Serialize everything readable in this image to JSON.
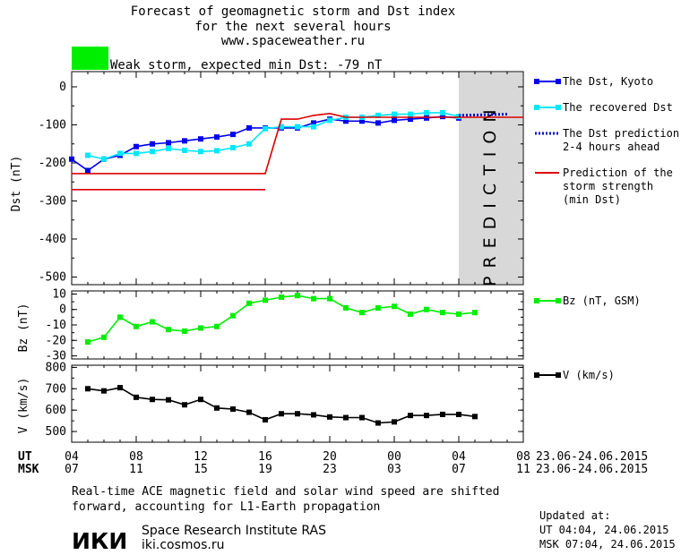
{
  "header": {
    "title_lines": [
      "Forecast of geomagnetic storm and Dst index",
      "for the next several hours",
      "www.spaceweather.ru"
    ],
    "storm_label": "Weak storm, expected min Dst: -79 nT",
    "storm_color": "#00ee00"
  },
  "prediction_label": "PREDICTION",
  "footer": {
    "note_lines": [
      "Real-time ACE magnetic field and solar wind speed are shifted",
      "forward, accounting for L1-Earth propagation"
    ],
    "logo_text": "ИКИ",
    "institute_name": "Space Research Institute RAS",
    "institute_url": "iki.cosmos.ru",
    "updated_label": "Updated at:",
    "updated_ut": "UT  04:04, 24.06.2015",
    "updated_msk": "MSK 07:04, 24.06.2015"
  },
  "chart_data": [
    {
      "type": "line",
      "ylabel": "Dst (nT)",
      "ylim": [
        -520,
        40
      ],
      "yticks": [
        0,
        -100,
        -200,
        -300,
        -400,
        -500
      ],
      "series": [
        {
          "name": "The Dst, Kyoto",
          "color": "#0000ee",
          "marker": "square",
          "x": [
            4,
            5,
            6,
            7,
            8,
            9,
            10,
            11,
            12,
            13,
            14,
            15,
            16,
            17,
            18,
            19,
            20,
            21,
            22,
            23,
            24,
            25,
            26,
            27,
            28
          ],
          "y": [
            -190,
            -220,
            -190,
            -180,
            -157,
            -150,
            -147,
            -142,
            -137,
            -132,
            -125,
            -108,
            -108,
            -108,
            -108,
            -95,
            -85,
            -90,
            -90,
            -95,
            -88,
            -85,
            -82,
            -78,
            -82
          ]
        },
        {
          "name": "The recovered Dst",
          "color": "#00e8ff",
          "marker": "square",
          "x": [
            5,
            6,
            7,
            8,
            9,
            10,
            11,
            12,
            13,
            14,
            15,
            16,
            17,
            18,
            19,
            20,
            21,
            22,
            23,
            24,
            25,
            26,
            27,
            28
          ],
          "y": [
            -180,
            -190,
            -175,
            -175,
            -170,
            -162,
            -167,
            -170,
            -168,
            -160,
            -150,
            -110,
            -105,
            -105,
            -105,
            -88,
            -80,
            -80,
            -75,
            -72,
            -72,
            -68,
            -68,
            -78
          ]
        },
        {
          "name": "The Dst prediction 2-4 hours ahead",
          "color": "#0000cc",
          "style": "dotted",
          "x": [
            28,
            29,
            30,
            31
          ],
          "y": [
            -75,
            -74,
            -73,
            -72
          ]
        },
        {
          "name": "Prediction of the storm strength (min Dst)",
          "color": "#dd0000",
          "x": [
            4,
            16,
            17,
            18,
            19,
            20,
            21,
            22,
            23,
            24,
            25,
            26,
            27,
            28,
            29,
            30,
            31,
            32
          ],
          "y": [
            -228,
            -228,
            -85,
            -85,
            -75,
            -70,
            -80,
            -80,
            -80,
            -80,
            -80,
            -80,
            -80,
            -80,
            -80,
            -80,
            -80,
            -80
          ]
        },
        {
          "name": "",
          "color": "#dd0000",
          "x": [
            4,
            16
          ],
          "y": [
            -270,
            -270
          ]
        }
      ],
      "prediction_region": [
        28,
        32
      ]
    },
    {
      "type": "line",
      "ylabel": "Bz (nT)",
      "ylim": [
        -32,
        12
      ],
      "yticks": [
        10,
        0,
        -10,
        -20,
        -30
      ],
      "series": [
        {
          "name": "Bz (nT, GSM)",
          "color": "#00ee00",
          "marker": "square",
          "x": [
            5,
            6,
            7,
            8,
            9,
            10,
            11,
            12,
            13,
            14,
            15,
            16,
            17,
            18,
            19,
            20,
            21,
            22,
            23,
            24,
            25,
            26,
            27,
            28,
            29
          ],
          "y": [
            -21,
            -18,
            -5,
            -11,
            -8,
            -13,
            -14,
            -12,
            -11,
            -4,
            4,
            6,
            8,
            9,
            7,
            7,
            1,
            -2,
            1,
            2,
            -3,
            0,
            -2,
            -3,
            -2
          ]
        }
      ]
    },
    {
      "type": "line",
      "ylabel": "V (km/s)",
      "ylim": [
        450,
        810
      ],
      "yticks": [
        800,
        700,
        600,
        500
      ],
      "series": [
        {
          "name": "V (km/s)",
          "color": "#000000",
          "marker": "square",
          "x": [
            5,
            6,
            7,
            8,
            9,
            10,
            11,
            12,
            13,
            14,
            15,
            16,
            17,
            18,
            19,
            20,
            21,
            22,
            23,
            24,
            25,
            26,
            27,
            28,
            29
          ],
          "y": [
            700,
            690,
            705,
            660,
            650,
            648,
            625,
            650,
            610,
            605,
            590,
            555,
            583,
            583,
            578,
            568,
            565,
            565,
            540,
            545,
            575,
            575,
            580,
            580,
            570
          ]
        }
      ]
    }
  ],
  "x_axis": {
    "xlim": [
      4,
      32
    ],
    "ut_label": "UT",
    "msk_label": "MSK",
    "ut_ticks": [
      "04",
      "08",
      "12",
      "16",
      "20",
      "00",
      "04",
      "08"
    ],
    "msk_ticks": [
      "07",
      "11",
      "15",
      "19",
      "23",
      "03",
      "07",
      "11"
    ],
    "ut_dates": "23.06-24.06.2015",
    "msk_dates": "23.06-24.06.2015"
  }
}
